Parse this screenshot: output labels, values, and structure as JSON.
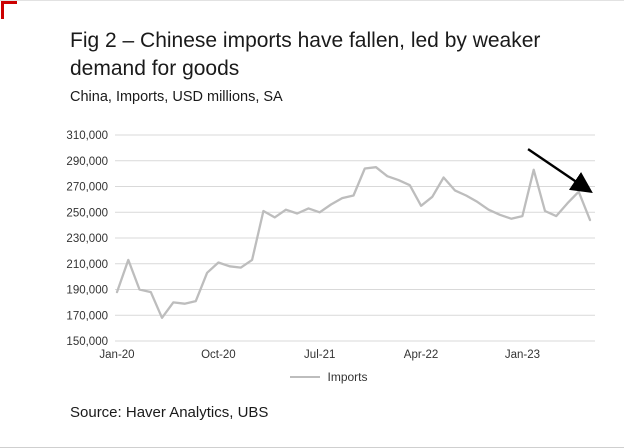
{
  "chart_data": {
    "type": "line",
    "title": "Fig 2 – Chinese imports have fallen, led by weaker demand for goods",
    "subtitle": "China, Imports, USD millions, SA",
    "source": "Source: Haver Analytics, UBS",
    "legend_label": "Imports",
    "legend_position": "bottom-center",
    "grid": "horizontal",
    "ylim": [
      150000,
      310000
    ],
    "yticks": [
      {
        "value": 150000,
        "label": "150,000"
      },
      {
        "value": 170000,
        "label": "170,000"
      },
      {
        "value": 190000,
        "label": "190,000"
      },
      {
        "value": 210000,
        "label": "210,000"
      },
      {
        "value": 230000,
        "label": "230,000"
      },
      {
        "value": 250000,
        "label": "250,000"
      },
      {
        "value": 270000,
        "label": "270,000"
      },
      {
        "value": 290000,
        "label": "290,000"
      },
      {
        "value": 310000,
        "label": "310,000"
      }
    ],
    "xticks": [
      {
        "index": 0,
        "label": "Jan-20"
      },
      {
        "index": 9,
        "label": "Oct-20"
      },
      {
        "index": 18,
        "label": "Jul-21"
      },
      {
        "index": 27,
        "label": "Apr-22"
      },
      {
        "index": 36,
        "label": "Jan-23"
      }
    ],
    "months": [
      "Jan-20",
      "Feb-20",
      "Mar-20",
      "Apr-20",
      "May-20",
      "Jun-20",
      "Jul-20",
      "Aug-20",
      "Sep-20",
      "Oct-20",
      "Nov-20",
      "Dec-20",
      "Jan-21",
      "Feb-21",
      "Mar-21",
      "Apr-21",
      "May-21",
      "Jun-21",
      "Jul-21",
      "Aug-21",
      "Sep-21",
      "Oct-21",
      "Nov-21",
      "Dec-21",
      "Jan-22",
      "Feb-22",
      "Mar-22",
      "Apr-22",
      "May-22",
      "Jun-22",
      "Jul-22",
      "Aug-22",
      "Sep-22",
      "Oct-22",
      "Nov-22",
      "Dec-22",
      "Jan-23",
      "Feb-23",
      "Mar-23",
      "Apr-23",
      "May-23",
      "Jun-23",
      "Jul-23"
    ],
    "series": [
      {
        "name": "Imports",
        "color": "#bdbdbd",
        "values": [
          188000,
          213000,
          190000,
          188000,
          168000,
          180000,
          179000,
          181000,
          203000,
          211000,
          208000,
          207000,
          213000,
          251000,
          246000,
          252000,
          249000,
          253000,
          250000,
          256000,
          261000,
          263000,
          284000,
          285000,
          278000,
          275000,
          271000,
          255000,
          262000,
          277000,
          267000,
          263000,
          258000,
          252000,
          248000,
          245000,
          247000,
          283000,
          251000,
          247000,
          257000,
          266000,
          244000
        ]
      }
    ],
    "annotation": {
      "type": "arrow",
      "color": "#000000",
      "from": {
        "index": 36.5,
        "value": 299000
      },
      "to": {
        "index": 41.9,
        "value": 267000
      }
    },
    "colors": {
      "gridline": "#d9d9d9",
      "tick_text": "#333333",
      "red_mark": "#cc0000"
    }
  }
}
